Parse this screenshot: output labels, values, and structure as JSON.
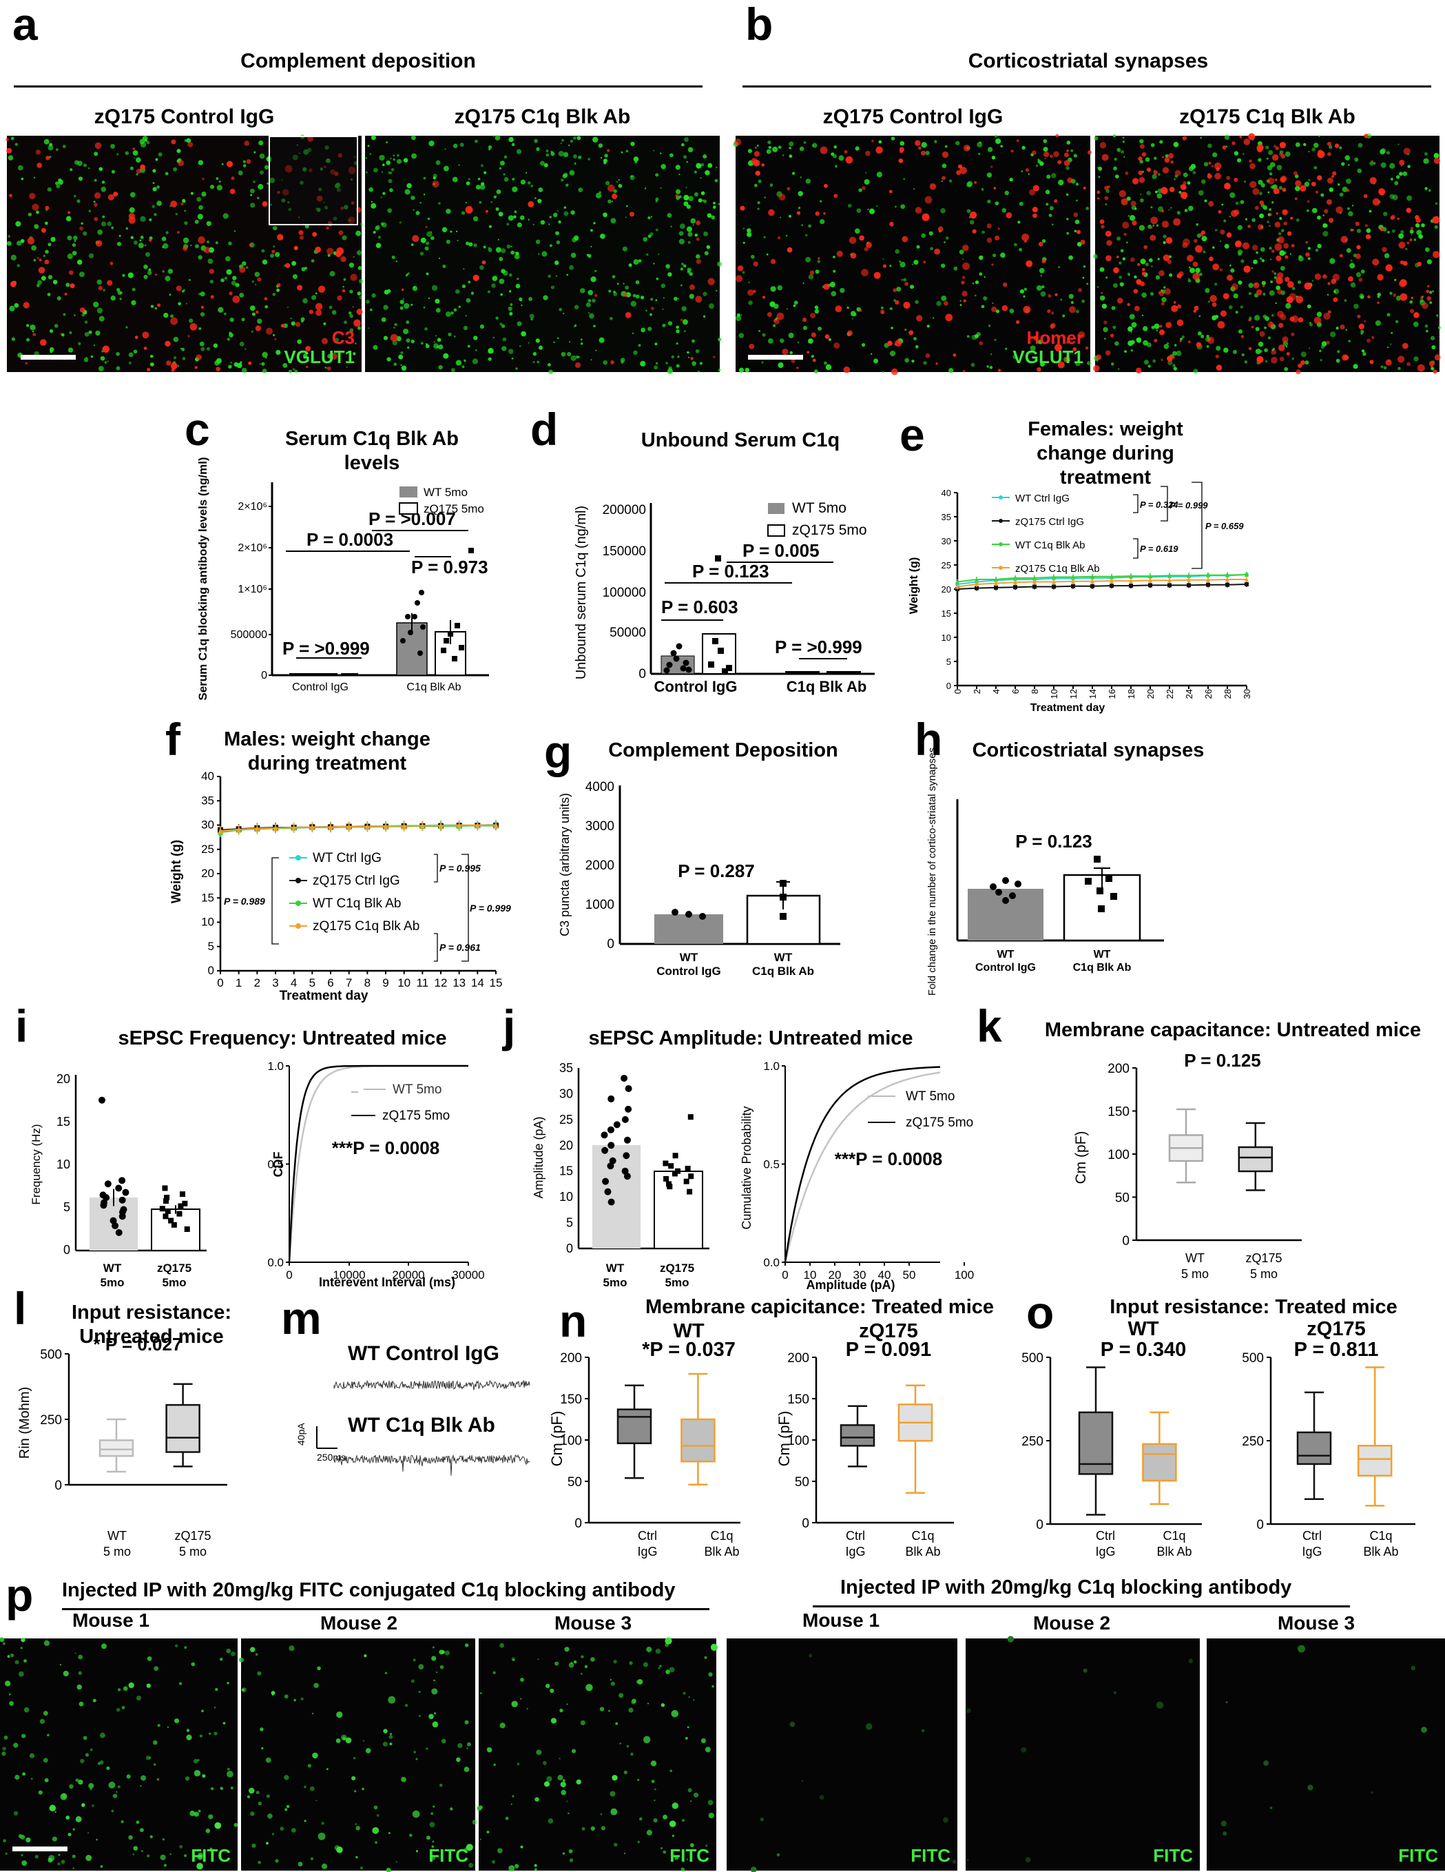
{
  "panels": {
    "a": {
      "letter": "a",
      "header": "Complement deposition",
      "img1_title": "zQ175 Control IgG",
      "img2_title": "zQ175  C1q Blk Ab",
      "ch1": "C3",
      "ch2": "VGLUT1"
    },
    "b": {
      "letter": "b",
      "header": "Corticostriatal synapses",
      "img1_title": "zQ175 Control IgG",
      "img2_title": "zQ175 C1q Blk Ab",
      "ch1": "Homer",
      "ch2": "VGLUT1"
    },
    "c": {
      "letter": "c",
      "title": "Serum C1q Blk Ab levels",
      "ylabel": "Serum C1q blocking antibody levels (ng/ml)",
      "yticks": [
        "0",
        "500000",
        "1×10⁶",
        "2×10⁶",
        "2×10⁶"
      ],
      "legend": [
        "WT 5mo",
        "zQ175 5mo"
      ],
      "xcats": [
        "Control IgG",
        "C1q Blk Ab"
      ],
      "stats": [
        "P = >0.999",
        "P = 0.0003",
        "P = >0.007",
        "P = 0.973"
      ]
    },
    "d": {
      "letter": "d",
      "title": "Unbound Serum C1q",
      "ylabel": "Unbound serum C1q (ng/ml)",
      "yticks": [
        "0",
        "50000",
        "100000",
        "150000",
        "200000"
      ],
      "legend": [
        "WT 5mo",
        "zQ175 5mo"
      ],
      "xcats": [
        "Control IgG",
        "C1q Blk Ab"
      ],
      "stats": [
        "P = 0.603",
        "P = 0.123",
        "P = 0.005",
        "P = >0.999"
      ]
    },
    "e": {
      "letter": "e",
      "title": "Females: weight change during treatment",
      "ylabel": "Weight (g)",
      "xlabel": "Treatment day",
      "yticks": [
        "0",
        "5",
        "10",
        "15",
        "20",
        "25",
        "30",
        "35",
        "40"
      ],
      "xticks": [
        "0",
        "2",
        "4",
        "6",
        "8",
        "10",
        "12",
        "14",
        "16",
        "18",
        "20",
        "22",
        "24",
        "26",
        "28",
        "30"
      ],
      "legend": [
        "WT Ctrl IgG",
        "zQ175 Ctrl IgG",
        "WT C1q Blk Ab",
        "zQ175 C1q Blk Ab"
      ],
      "stats": [
        "P = 0.324",
        "P = 0.999",
        "P = 0.659",
        "P = 0.619"
      ]
    },
    "f": {
      "letter": "f",
      "title": "Males: weight change during treatment",
      "ylabel": "Weight (g)",
      "xlabel": "Treatment day",
      "yticks": [
        "0",
        "5",
        "10",
        "15",
        "20",
        "25",
        "30",
        "35",
        "40"
      ],
      "xticks": [
        "0",
        "1",
        "2",
        "3",
        "4",
        "5",
        "6",
        "7",
        "8",
        "9",
        "10",
        "11",
        "12",
        "13",
        "14",
        "15"
      ],
      "legend": [
        "WT Ctrl IgG",
        "zQ175 Ctrl IgG",
        "WT C1q Blk Ab",
        "zQ175 C1q Blk Ab"
      ],
      "stats": [
        "P = 0.989",
        "P = 0.995",
        "P = 0.999",
        "P = 0.961"
      ]
    },
    "g": {
      "letter": "g",
      "title": "Complement Deposition",
      "ylabel": "C3 puncta (arbitrary units)",
      "yticks": [
        "0",
        "1000",
        "2000",
        "3000",
        "4000"
      ],
      "xcats": [
        [
          "WT",
          "Control IgG"
        ],
        [
          "WT",
          "C1q Blk Ab"
        ]
      ],
      "stat": "P = 0.287"
    },
    "h": {
      "letter": "h",
      "title": "Corticostriatal synapses",
      "ylabel": "Fold change in the number of cortico-striatal synapses",
      "xcats": [
        [
          "WT",
          "Control IgG"
        ],
        [
          "WT",
          "C1q Blk Ab"
        ]
      ],
      "stat": "P = 0.123"
    },
    "i": {
      "letter": "i",
      "title": "sEPSC Frequency: Untreated mice",
      "ylabel": "Frequency (Hz)",
      "yticks": [
        "0",
        "5",
        "10",
        "15",
        "20"
      ],
      "xcats": [
        [
          "WT",
          "5mo"
        ],
        [
          "zQ175",
          "5mo"
        ]
      ],
      "cdf_ylabel": "CDF",
      "cdf_xlabel": "Interevent Interval (ms)",
      "cdf_xticks": [
        "0",
        "10000",
        "20000",
        "30000"
      ],
      "cdf_yticks": [
        "0.0",
        "0.5",
        "1.0"
      ],
      "legend": [
        "WT 5mo",
        "zQ175 5mo"
      ],
      "stat": "***P = 0.0008"
    },
    "j": {
      "letter": "j",
      "title": "sEPSC Amplitude: Untreated mice",
      "ylabel": "Amplitude (pA)",
      "yticks": [
        "0",
        "5",
        "10",
        "15",
        "20",
        "25",
        "30",
        "35"
      ],
      "xcats": [
        [
          "WT",
          "5mo"
        ],
        [
          "zQ175",
          "5mo"
        ]
      ],
      "cdf_ylabel": "Cumulative Probability",
      "cdf_xlabel": "Amplitude (pA)",
      "cdf_xticks": [
        "0",
        "10",
        "20",
        "30",
        "40",
        "50",
        "100"
      ],
      "cdf_yticks": [
        "0.0",
        "0.5",
        "1.0"
      ],
      "legend": [
        "WT 5mo",
        "zQ175 5mo"
      ],
      "stat": "***P = 0.0008"
    },
    "k": {
      "letter": "k",
      "title": "Membrane capacitance: Untreated mice",
      "ylabel": "Cm (pF)",
      "yticks": [
        "0",
        "50",
        "100",
        "150",
        "200"
      ],
      "xcats": [
        [
          "WT",
          "5 mo"
        ],
        [
          "zQ175",
          "5 mo"
        ]
      ],
      "stat": "P = 0.125"
    },
    "l": {
      "letter": "l",
      "title": "Input resistance: Untreated mice",
      "ylabel": "Rin (Mohm)",
      "yticks": [
        "0",
        "250",
        "500"
      ],
      "xcats": [
        [
          "WT",
          "5 mo"
        ],
        [
          "zQ175",
          "5 mo"
        ]
      ],
      "stat": "* P = 0.027"
    },
    "m": {
      "letter": "m",
      "trace1": "WT Control IgG",
      "trace2": "WT C1q Blk Ab",
      "scale_y": "40pA",
      "scale_x": "250ms"
    },
    "n": {
      "letter": "n",
      "title": "Membrane capicitance: Treated mice",
      "sub1": "WT",
      "sub2": "zQ175",
      "stat1": "*P = 0.037",
      "stat2": "P = 0.091",
      "ylabel": "Cm (pF)",
      "yticks": [
        "0",
        "50",
        "100",
        "150",
        "200"
      ],
      "xcats": [
        [
          "Ctrl",
          "IgG"
        ],
        [
          "C1q",
          "Blk Ab"
        ]
      ]
    },
    "o": {
      "letter": "o",
      "title": "Input resistance: Treated mice",
      "sub1": "WT",
      "sub2": "zQ175",
      "stat1": "P = 0.340",
      "stat2": "P = 0.811",
      "yticks": [
        "0",
        "250",
        "500"
      ],
      "xcats": [
        [
          "Ctrl",
          "IgG"
        ],
        [
          "C1q",
          "Blk Ab"
        ]
      ]
    },
    "p": {
      "letter": "p",
      "header1": "Injected IP with 20mg/kg FITC conjugated C1q blocking antibody",
      "header2": "Injected IP with 20mg/kg C1q blocking antibody",
      "mice": [
        "Mouse 1",
        "Mouse 2",
        "Mouse 3"
      ],
      "channel": "FITC"
    }
  },
  "colors": {
    "cyan": "#2ad4d4",
    "black": "#111111",
    "green": "#3ad13a",
    "orange": "#f0a030",
    "gray_bar": "#8c8c8c",
    "light_bar": "#d8d8d8",
    "orange_box": "#f0a030"
  },
  "chart_data": [
    {
      "panel": "c",
      "type": "bar",
      "categories": [
        "Control IgG",
        "C1q Blk Ab"
      ],
      "series": [
        {
          "name": "WT 5mo",
          "values": [
            0,
            650000
          ]
        },
        {
          "name": "zQ175 5mo",
          "values": [
            0,
            540000
          ]
        }
      ]
    },
    {
      "panel": "d",
      "type": "bar",
      "categories": [
        "Control IgG",
        "C1q Blk Ab"
      ],
      "series": [
        {
          "name": "WT 5mo",
          "values": [
            22000,
            500
          ]
        },
        {
          "name": "zQ175 5mo",
          "values": [
            48000,
            500
          ]
        }
      ],
      "ylim": [
        0,
        200000
      ]
    },
    {
      "panel": "e",
      "type": "line",
      "x": [
        0,
        2,
        4,
        6,
        8,
        10,
        12,
        14,
        16,
        18,
        20,
        22,
        24,
        26,
        28,
        30
      ],
      "series": [
        {
          "name": "WT Ctrl IgG",
          "values": [
            21,
            21.5,
            21.8,
            22,
            22,
            22.2,
            22.2,
            22.3,
            22.3,
            22.5,
            22.5,
            22.6,
            22.6,
            22.8,
            22.8,
            23
          ]
        },
        {
          "name": "zQ175 Ctrl IgG",
          "values": [
            20,
            20.2,
            20.3,
            20.4,
            20.5,
            20.5,
            20.6,
            20.6,
            20.7,
            20.7,
            20.8,
            20.8,
            20.8,
            20.9,
            20.9,
            21
          ]
        },
        {
          "name": "WT C1q Blk Ab",
          "values": [
            21.5,
            22,
            22,
            22.3,
            22.3,
            22.5,
            22.5,
            22.6,
            22.6,
            22.7,
            22.7,
            22.8,
            22.8,
            22.9,
            22.9,
            23
          ]
        },
        {
          "name": "zQ175 C1q Blk Ab",
          "values": [
            20.5,
            21,
            21.2,
            21.4,
            21.5,
            21.5,
            21.6,
            21.6,
            21.7,
            21.7,
            21.8,
            21.8,
            21.9,
            21.9,
            22,
            22
          ]
        }
      ],
      "ylim": [
        0,
        40
      ]
    },
    {
      "panel": "f",
      "type": "line",
      "x": [
        0,
        1,
        2,
        3,
        4,
        5,
        6,
        7,
        8,
        9,
        10,
        11,
        12,
        13,
        14,
        15
      ],
      "series": [
        {
          "name": "WT Ctrl IgG",
          "values": [
            28.5,
            29,
            29.3,
            29.5,
            29.5,
            29.6,
            29.7,
            29.7,
            29.8,
            29.8,
            29.9,
            29.9,
            30,
            30,
            30,
            30.1
          ]
        },
        {
          "name": "zQ175 Ctrl IgG",
          "values": [
            29,
            29.2,
            29.4,
            29.5,
            29.5,
            29.6,
            29.6,
            29.7,
            29.7,
            29.7,
            29.8,
            29.8,
            29.8,
            29.9,
            29.9,
            29.9
          ]
        },
        {
          "name": "WT C1q Blk Ab",
          "values": [
            28.5,
            29,
            29.2,
            29.3,
            29.4,
            29.5,
            29.5,
            29.6,
            29.6,
            29.7,
            29.7,
            29.8,
            29.8,
            29.8,
            29.9,
            29.9
          ]
        },
        {
          "name": "zQ175 C1q Blk Ab",
          "values": [
            28.8,
            29.1,
            29.3,
            29.4,
            29.5,
            29.6,
            29.6,
            29.7,
            29.7,
            29.8,
            29.8,
            29.9,
            29.9,
            30,
            30,
            30
          ]
        }
      ],
      "ylim": [
        0,
        40
      ]
    },
    {
      "panel": "g",
      "type": "bar",
      "categories": [
        "WT Control IgG",
        "WT C1q Blk Ab"
      ],
      "values": [
        750,
        1220
      ],
      "ylim": [
        0,
        4000
      ]
    },
    {
      "panel": "h",
      "type": "bar",
      "categories": [
        "WT Control IgG",
        "WT C1q Blk Ab"
      ],
      "values": [
        1.0,
        1.3
      ],
      "ylim": [
        0,
        2.5
      ]
    },
    {
      "panel": "i",
      "type": "bar",
      "categories": [
        "WT 5mo",
        "zQ175 5mo"
      ],
      "values": [
        6.2,
        4.8
      ],
      "ylim": [
        0,
        20
      ]
    },
    {
      "panel": "j",
      "type": "bar",
      "categories": [
        "WT 5mo",
        "zQ175 5mo"
      ],
      "values": [
        20,
        15
      ],
      "ylim": [
        0,
        35
      ]
    },
    {
      "panel": "k",
      "type": "box",
      "categories": [
        "WT 5 mo",
        "zQ175 5 mo"
      ],
      "series": [
        {
          "name": "WT 5 mo",
          "min": 67,
          "q1": 92,
          "median": 107,
          "q3": 122,
          "max": 152
        },
        {
          "name": "zQ175 5 mo",
          "min": 58,
          "q1": 80,
          "median": 96,
          "q3": 108,
          "max": 136
        }
      ],
      "ylim": [
        0,
        200
      ]
    },
    {
      "panel": "l",
      "type": "box",
      "categories": [
        "WT 5 mo",
        "zQ175 5 mo"
      ],
      "series": [
        {
          "name": "WT 5 mo",
          "min": 50,
          "q1": 110,
          "median": 135,
          "q3": 170,
          "max": 250
        },
        {
          "name": "zQ175 5 mo",
          "min": 70,
          "q1": 125,
          "median": 180,
          "q3": 305,
          "max": 385
        }
      ],
      "ylim": [
        0,
        500
      ]
    },
    {
      "panel": "n-WT",
      "type": "box",
      "categories": [
        "Ctrl IgG",
        "C1q Blk Ab"
      ],
      "series": [
        {
          "name": "Ctrl IgG",
          "min": 54,
          "q1": 96,
          "median": 128,
          "q3": 137,
          "max": 166
        },
        {
          "name": "C1q Blk Ab",
          "min": 46,
          "q1": 74,
          "median": 93,
          "q3": 125,
          "max": 180
        }
      ],
      "ylim": [
        0,
        200
      ]
    },
    {
      "panel": "n-zQ175",
      "type": "box",
      "categories": [
        "Ctrl IgG",
        "C1q Blk Ab"
      ],
      "series": [
        {
          "name": "Ctrl IgG",
          "min": 68,
          "q1": 93,
          "median": 103,
          "q3": 118,
          "max": 141
        },
        {
          "name": "C1q Blk Ab",
          "min": 36,
          "q1": 99,
          "median": 121,
          "q3": 143,
          "max": 166
        }
      ],
      "ylim": [
        0,
        200
      ]
    },
    {
      "panel": "o-WT",
      "type": "box",
      "categories": [
        "Ctrl IgG",
        "C1q Blk Ab"
      ],
      "series": [
        {
          "name": "Ctrl IgG",
          "min": 28,
          "q1": 150,
          "median": 180,
          "q3": 335,
          "max": 470
        },
        {
          "name": "C1q Blk Ab",
          "min": 60,
          "q1": 130,
          "median": 210,
          "q3": 240,
          "max": 335
        }
      ],
      "ylim": [
        0,
        500
      ]
    },
    {
      "panel": "o-zQ175",
      "type": "box",
      "categories": [
        "Ctrl IgG",
        "C1q Blk Ab"
      ],
      "series": [
        {
          "name": "Ctrl IgG",
          "min": 75,
          "q1": 180,
          "median": 205,
          "q3": 275,
          "max": 395
        },
        {
          "name": "C1q Blk Ab",
          "min": 55,
          "q1": 145,
          "median": 195,
          "q3": 235,
          "max": 470
        }
      ],
      "ylim": [
        0,
        500
      ]
    }
  ]
}
